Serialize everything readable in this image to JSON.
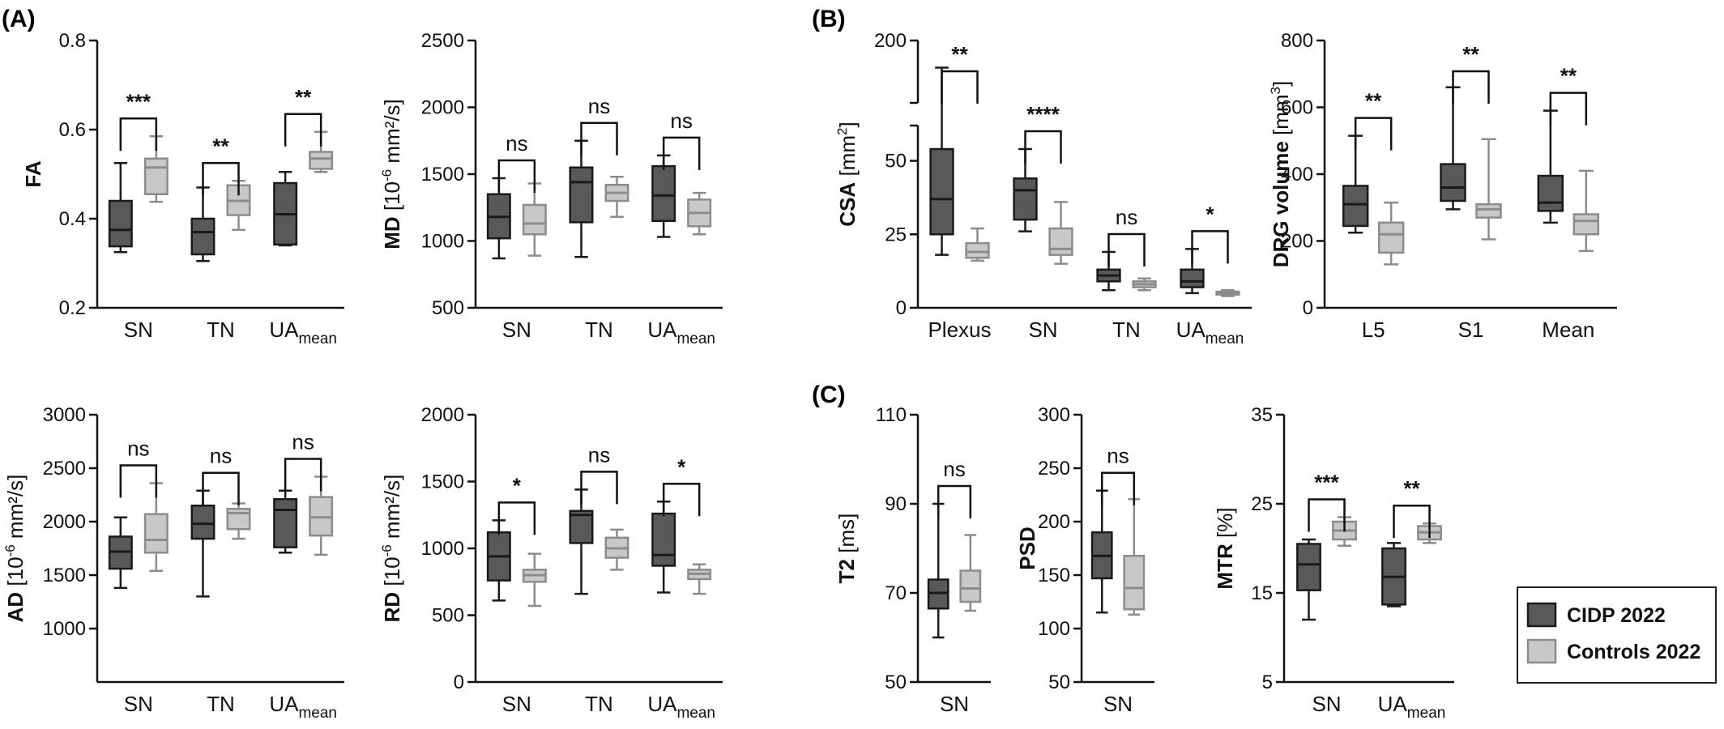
{
  "colors": {
    "cidp_fill": "#595959",
    "cidp_stroke": "#1a1a1a",
    "control_fill": "#c8c8c8",
    "control_stroke": "#8c8c8c"
  },
  "legend": {
    "items": [
      {
        "label": "CIDP 2022",
        "color_key": "cidp"
      },
      {
        "label": "Controls 2022",
        "color_key": "control"
      }
    ]
  },
  "panel_labels": [
    "(A)",
    "(B)",
    "(C)"
  ],
  "chart_data": [
    {
      "id": "fa",
      "type": "box",
      "ylabel_bold": "FA",
      "ylabel_rest": "",
      "ylabel_sup": "",
      "ylabel_tail": "",
      "ylim": [
        0.2,
        0.8
      ],
      "yticks": [
        "0.2",
        "0.4",
        "0.6",
        "0.8"
      ],
      "ytick_values": [
        0.2,
        0.4,
        0.6,
        0.8
      ],
      "categories": [
        {
          "main": "SN",
          "sub": ""
        },
        {
          "main": "TN",
          "sub": ""
        },
        {
          "main": "UA",
          "sub": "mean"
        }
      ],
      "significance": [
        "***",
        "**",
        "**"
      ],
      "boxes": [
        [
          {
            "group": "cidp",
            "min": 0.325,
            "q1": 0.338,
            "median": 0.375,
            "q3": 0.44,
            "max": 0.525
          },
          {
            "group": "control",
            "min": 0.438,
            "q1": 0.455,
            "median": 0.515,
            "q3": 0.535,
            "max": 0.585
          }
        ],
        [
          {
            "group": "cidp",
            "min": 0.305,
            "q1": 0.32,
            "median": 0.37,
            "q3": 0.4,
            "max": 0.47
          },
          {
            "group": "control",
            "min": 0.375,
            "q1": 0.408,
            "median": 0.44,
            "q3": 0.475,
            "max": 0.485
          }
        ],
        [
          {
            "group": "cidp",
            "min": 0.34,
            "q1": 0.342,
            "median": 0.41,
            "q3": 0.48,
            "max": 0.505
          },
          {
            "group": "control",
            "min": 0.505,
            "q1": 0.512,
            "median": 0.535,
            "q3": 0.55,
            "max": 0.595
          }
        ]
      ]
    },
    {
      "id": "md",
      "type": "box",
      "ylabel_bold": "MD",
      "ylabel_rest": " [10",
      "ylabel_sup": "-6",
      "ylabel_tail": " mm²/s]",
      "ylim": [
        500,
        2500
      ],
      "yticks": [
        "500",
        "1000",
        "1500",
        "2000",
        "2500"
      ],
      "ytick_values": [
        500,
        1000,
        1500,
        2000,
        2500
      ],
      "categories": [
        {
          "main": "SN",
          "sub": ""
        },
        {
          "main": "TN",
          "sub": ""
        },
        {
          "main": "UA",
          "sub": "mean"
        }
      ],
      "significance": [
        "ns",
        "ns",
        "ns"
      ],
      "boxes": [
        [
          {
            "group": "cidp",
            "min": 870,
            "q1": 1020,
            "median": 1180,
            "q3": 1350,
            "max": 1470
          },
          {
            "group": "control",
            "min": 890,
            "q1": 1050,
            "median": 1130,
            "q3": 1270,
            "max": 1430
          }
        ],
        [
          {
            "group": "cidp",
            "min": 880,
            "q1": 1140,
            "median": 1440,
            "q3": 1550,
            "max": 1750
          },
          {
            "group": "control",
            "min": 1180,
            "q1": 1300,
            "median": 1360,
            "q3": 1420,
            "max": 1480
          }
        ],
        [
          {
            "group": "cidp",
            "min": 1030,
            "q1": 1150,
            "median": 1340,
            "q3": 1560,
            "max": 1640
          },
          {
            "group": "control",
            "min": 1050,
            "q1": 1110,
            "median": 1210,
            "q3": 1310,
            "max": 1360
          }
        ]
      ]
    },
    {
      "id": "ad",
      "type": "box",
      "ylabel_bold": "AD",
      "ylabel_rest": " [10",
      "ylabel_sup": "-6",
      "ylabel_tail": " mm²/s]",
      "ylim": [
        500,
        3000
      ],
      "yticks": [
        "1000",
        "1500",
        "2000",
        "2500",
        "3000"
      ],
      "ytick_values": [
        1000,
        1500,
        2000,
        2500,
        3000
      ],
      "categories": [
        {
          "main": "SN",
          "sub": ""
        },
        {
          "main": "TN",
          "sub": ""
        },
        {
          "main": "UA",
          "sub": "mean"
        }
      ],
      "significance": [
        "ns",
        "ns",
        "ns"
      ],
      "boxes": [
        [
          {
            "group": "cidp",
            "min": 1380,
            "q1": 1560,
            "median": 1720,
            "q3": 1860,
            "max": 2040
          },
          {
            "group": "control",
            "min": 1540,
            "q1": 1710,
            "median": 1830,
            "q3": 2070,
            "max": 2360
          }
        ],
        [
          {
            "group": "cidp",
            "min": 1300,
            "q1": 1840,
            "median": 1980,
            "q3": 2150,
            "max": 2290
          },
          {
            "group": "control",
            "min": 1840,
            "q1": 1930,
            "median": 2080,
            "q3": 2120,
            "max": 2170
          }
        ],
        [
          {
            "group": "cidp",
            "min": 1710,
            "q1": 1760,
            "median": 2110,
            "q3": 2210,
            "max": 2290
          },
          {
            "group": "control",
            "min": 1690,
            "q1": 1870,
            "median": 2040,
            "q3": 2230,
            "max": 2420
          }
        ]
      ]
    },
    {
      "id": "rd",
      "type": "box",
      "ylabel_bold": "RD",
      "ylabel_rest": " [10",
      "ylabel_sup": "-6",
      "ylabel_tail": " mm²/s]",
      "ylim": [
        0,
        2000
      ],
      "yticks": [
        "0",
        "500",
        "1000",
        "1500",
        "2000"
      ],
      "ytick_values": [
        0,
        500,
        1000,
        1500,
        2000
      ],
      "categories": [
        {
          "main": "SN",
          "sub": ""
        },
        {
          "main": "TN",
          "sub": ""
        },
        {
          "main": "UA",
          "sub": "mean"
        }
      ],
      "significance": [
        "*",
        "ns",
        "*"
      ],
      "boxes": [
        [
          {
            "group": "cidp",
            "min": 610,
            "q1": 760,
            "median": 940,
            "q3": 1120,
            "max": 1210
          },
          {
            "group": "control",
            "min": 570,
            "q1": 750,
            "median": 800,
            "q3": 840,
            "max": 960
          }
        ],
        [
          {
            "group": "cidp",
            "min": 660,
            "q1": 1040,
            "median": 1250,
            "q3": 1280,
            "max": 1440
          },
          {
            "group": "control",
            "min": 840,
            "q1": 930,
            "median": 1000,
            "q3": 1080,
            "max": 1140
          }
        ],
        [
          {
            "group": "cidp",
            "min": 670,
            "q1": 870,
            "median": 950,
            "q3": 1260,
            "max": 1350
          },
          {
            "group": "control",
            "min": 660,
            "q1": 770,
            "median": 810,
            "q3": 840,
            "max": 880
          }
        ]
      ]
    },
    {
      "id": "csa",
      "type": "box",
      "ylabel_bold": "CSA",
      "ylabel_rest": " [mm",
      "ylabel_sup": "2",
      "ylabel_tail": "]",
      "ylim": [
        0,
        200
      ],
      "axis_break": true,
      "yticks": [
        "0",
        "25",
        "50",
        "200"
      ],
      "ytick_values": [
        0,
        25,
        50,
        200
      ],
      "categories": [
        {
          "main": "Plexus",
          "sub": ""
        },
        {
          "main": "SN",
          "sub": ""
        },
        {
          "main": "TN",
          "sub": ""
        },
        {
          "main": "UA",
          "sub": "mean"
        }
      ],
      "significance": [
        "**",
        "****",
        "ns",
        "*"
      ],
      "boxes": [
        [
          {
            "group": "cidp",
            "min": 18,
            "q1": 25,
            "median": 37,
            "q3": 54,
            "max": 140
          },
          {
            "group": "control",
            "min": 16,
            "q1": 17,
            "median": 19,
            "q3": 22,
            "max": 27
          }
        ],
        [
          {
            "group": "cidp",
            "min": 26,
            "q1": 30,
            "median": 40,
            "q3": 44,
            "max": 54
          },
          {
            "group": "control",
            "min": 15,
            "q1": 18,
            "median": 20,
            "q3": 27,
            "max": 36
          }
        ],
        [
          {
            "group": "cidp",
            "min": 6,
            "q1": 9,
            "median": 11,
            "q3": 13,
            "max": 19
          },
          {
            "group": "control",
            "min": 6,
            "q1": 7,
            "median": 8,
            "q3": 9,
            "max": 10
          }
        ],
        [
          {
            "group": "cidp",
            "min": 5,
            "q1": 7,
            "median": 9,
            "q3": 13,
            "max": 20
          },
          {
            "group": "control",
            "min": 4,
            "q1": 4.5,
            "median": 5,
            "q3": 5.5,
            "max": 6
          }
        ]
      ]
    },
    {
      "id": "drg",
      "type": "box",
      "ylabel_bold": "DRG volume",
      "ylabel_rest": " [mm",
      "ylabel_sup": "3",
      "ylabel_tail": "]",
      "ylim": [
        0,
        800
      ],
      "yticks": [
        "0",
        "200",
        "400",
        "600",
        "800"
      ],
      "ytick_values": [
        0,
        200,
        400,
        600,
        800
      ],
      "categories": [
        {
          "main": "L5",
          "sub": ""
        },
        {
          "main": "S1",
          "sub": ""
        },
        {
          "main": "Mean",
          "sub": ""
        }
      ],
      "significance": [
        "**",
        "**",
        "**"
      ],
      "boxes": [
        [
          {
            "group": "cidp",
            "min": 225,
            "q1": 245,
            "median": 310,
            "q3": 365,
            "max": 515
          },
          {
            "group": "control",
            "min": 130,
            "q1": 165,
            "median": 220,
            "q3": 255,
            "max": 315
          }
        ],
        [
          {
            "group": "cidp",
            "min": 295,
            "q1": 320,
            "median": 360,
            "q3": 430,
            "max": 660
          },
          {
            "group": "control",
            "min": 205,
            "q1": 270,
            "median": 295,
            "q3": 310,
            "max": 505
          }
        ],
        [
          {
            "group": "cidp",
            "min": 255,
            "q1": 290,
            "median": 315,
            "q3": 395,
            "max": 590
          },
          {
            "group": "control",
            "min": 170,
            "q1": 220,
            "median": 260,
            "q3": 280,
            "max": 410
          }
        ]
      ]
    },
    {
      "id": "t2",
      "type": "box",
      "ylabel_bold": "T2",
      "ylabel_rest": " [ms]",
      "ylabel_sup": "",
      "ylabel_tail": "",
      "ylim": [
        50,
        110
      ],
      "yticks": [
        "50",
        "70",
        "90",
        "110"
      ],
      "ytick_values": [
        50,
        70,
        90,
        110
      ],
      "categories": [
        {
          "main": "SN",
          "sub": ""
        }
      ],
      "significance": [
        "ns"
      ],
      "boxes": [
        [
          {
            "group": "cidp",
            "min": 60,
            "q1": 66.5,
            "median": 70,
            "q3": 73,
            "max": 90
          },
          {
            "group": "control",
            "min": 66,
            "q1": 68,
            "median": 71,
            "q3": 75,
            "max": 83
          }
        ]
      ]
    },
    {
      "id": "psd",
      "type": "box",
      "ylabel_bold": "PSD",
      "ylabel_rest": "",
      "ylabel_sup": "",
      "ylabel_tail": "",
      "ylim": [
        50,
        300
      ],
      "yticks": [
        "50",
        "100",
        "150",
        "200",
        "250",
        "300"
      ],
      "ytick_values": [
        50,
        100,
        150,
        200,
        250,
        300
      ],
      "categories": [
        {
          "main": "SN",
          "sub": ""
        }
      ],
      "significance": [
        "ns"
      ],
      "boxes": [
        [
          {
            "group": "cidp",
            "min": 115,
            "q1": 147,
            "median": 168,
            "q3": 190,
            "max": 229
          },
          {
            "group": "control",
            "min": 113,
            "q1": 118,
            "median": 138,
            "q3": 168,
            "max": 221
          }
        ]
      ]
    },
    {
      "id": "mtr",
      "type": "box",
      "ylabel_bold": "MTR",
      "ylabel_rest": " [%]",
      "ylabel_sup": "",
      "ylabel_tail": "",
      "ylim": [
        5,
        35
      ],
      "yticks": [
        "5",
        "15",
        "25",
        "35"
      ],
      "ytick_values": [
        5,
        15,
        25,
        35
      ],
      "categories": [
        {
          "main": "SN",
          "sub": ""
        },
        {
          "main": "UA",
          "sub": "mean"
        }
      ],
      "significance": [
        "***",
        "**"
      ],
      "boxes": [
        [
          {
            "group": "cidp",
            "min": 12,
            "q1": 15.3,
            "median": 18.2,
            "q3": 20.5,
            "max": 21
          },
          {
            "group": "control",
            "min": 20.3,
            "q1": 21,
            "median": 22,
            "q3": 23,
            "max": 23.5
          }
        ],
        [
          {
            "group": "cidp",
            "min": 13.5,
            "q1": 13.7,
            "median": 16.8,
            "q3": 20,
            "max": 20.6
          },
          {
            "group": "control",
            "min": 20.6,
            "q1": 21,
            "median": 21.8,
            "q3": 22.5,
            "max": 22.8
          }
        ]
      ]
    }
  ]
}
